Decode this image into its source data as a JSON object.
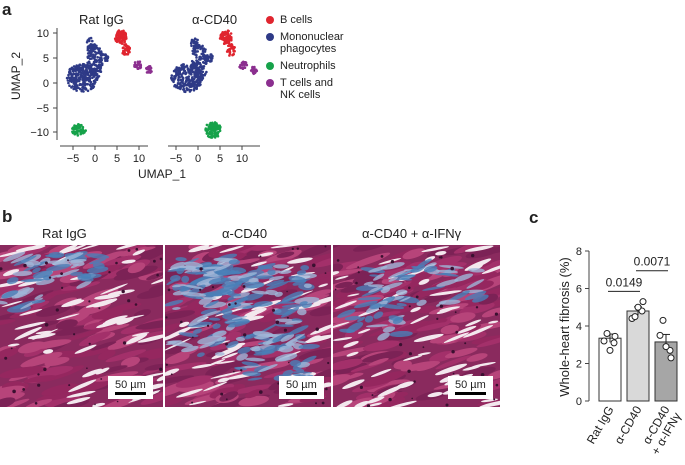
{
  "panel_a": {
    "letter": "a",
    "plots": [
      {
        "title": "Rat IgG"
      },
      {
        "title": "α-CD40"
      }
    ],
    "x_axis_label": "UMAP_1",
    "y_axis_label": "UMAP_2",
    "x_ticks": [
      "−5",
      "0",
      "5",
      "10"
    ],
    "y_ticks": [
      "10",
      "5",
      "0",
      "−5",
      "−10"
    ],
    "legend": [
      {
        "label": "B cells",
        "color": "#e0252f"
      },
      {
        "label": "Mononuclear phagocytes",
        "color": "#2e3a87"
      },
      {
        "label": "Neutrophils",
        "color": "#16a24a"
      },
      {
        "label": "T cells and NK cells",
        "color": "#8b2f8f"
      }
    ]
  },
  "panel_b": {
    "letter": "b",
    "images": [
      {
        "title": "Rat IgG",
        "scale": "50 µm"
      },
      {
        "title": "α-CD40",
        "scale": "50 µm"
      },
      {
        "title": "α-CD40 + α-IFNγ",
        "scale": "50 µm"
      }
    ]
  },
  "panel_c": {
    "letter": "c"
  },
  "chart_data": {
    "type": "bar",
    "categories": [
      "Rat IgG",
      "α-CD40",
      "α-CD40\n+ α-IFNγ"
    ],
    "ylabel": "Whole-heart fibrosis (%)",
    "ylim": [
      0,
      8
    ],
    "yticks": [
      0,
      2,
      4,
      6,
      8
    ],
    "values": [
      3.35,
      4.8,
      3.15
    ],
    "errors": [
      0.22,
      0.22,
      0.4
    ],
    "bar_colors": [
      "#ffffff",
      "#d9d9d9",
      "#a6a6a6"
    ],
    "points": [
      [
        3.2,
        3.45,
        3.6,
        3.1,
        2.7
      ],
      [
        4.4,
        5.3,
        4.5,
        4.8,
        5.0
      ],
      [
        3.5,
        2.3,
        4.3,
        2.7,
        2.9
      ]
    ],
    "annotations": [
      {
        "label": "0.0149",
        "from": 0,
        "to": 1
      },
      {
        "label": "0.0071",
        "from": 1,
        "to": 2
      }
    ]
  }
}
